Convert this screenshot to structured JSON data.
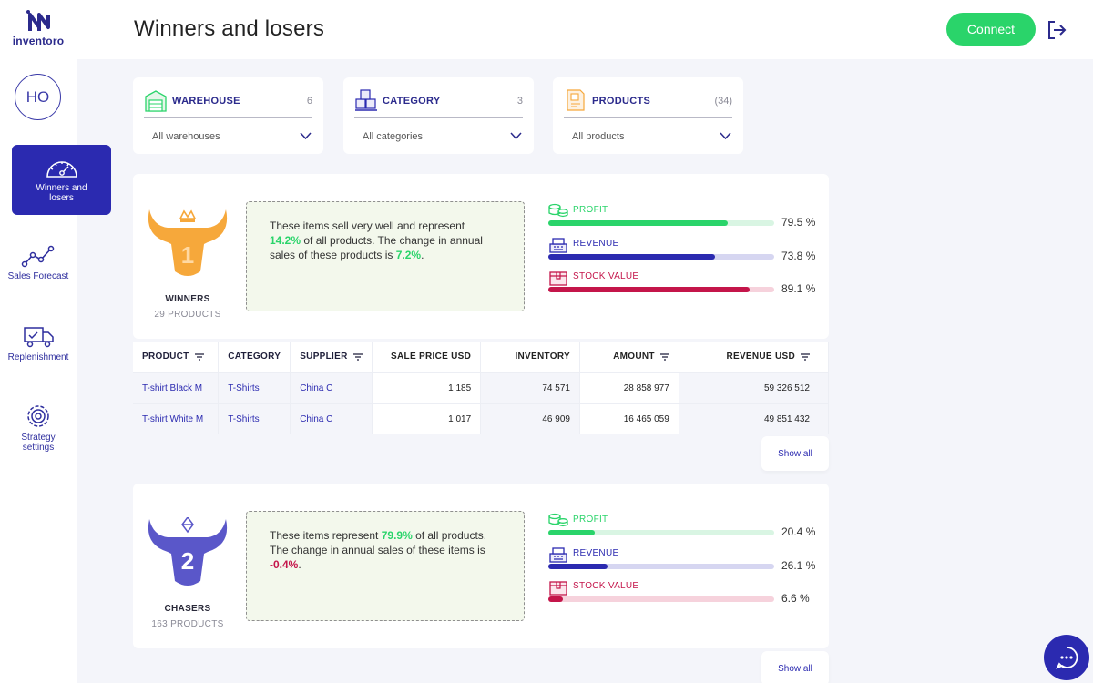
{
  "app": {
    "logo_text": "inventoro"
  },
  "user": {
    "initials": "HO"
  },
  "nav": {
    "active_label_line1": "Winners and",
    "active_label_line2": "losers",
    "forecast": "Sales Forecast",
    "replenishment": "Replenishment",
    "strategy_line1": "Strategy",
    "strategy_line2": "settings"
  },
  "header": {
    "title": "Winners and losers",
    "connect_label": "Connect"
  },
  "filters": {
    "warehouse": {
      "label": "WAREHOUSE",
      "count": "6",
      "value": "All warehouses"
    },
    "category": {
      "label": "CATEGORY",
      "count": "3",
      "value": "All categories"
    },
    "products": {
      "label": "PRODUCTS",
      "count": "(34)",
      "value": "All products"
    }
  },
  "winners": {
    "rank": "1",
    "title": "WINNERS",
    "subtitle": "29 PRODUCTS",
    "desc_part1": "These items sell very well and represent",
    "desc_pct": "14.2%",
    "desc_part2": " of all products. The change in annual sales of these products is ",
    "desc_change": "7.2%",
    "desc_end": ".",
    "metrics": {
      "profit": {
        "label": "PROFIT",
        "value": "79.5 %",
        "fraction": 0.795
      },
      "revenue": {
        "label": "REVENUE",
        "value": "73.8 %",
        "fraction": 0.738
      },
      "stock": {
        "label": "STOCK VALUE",
        "value": "89.1 %",
        "fraction": 0.891
      }
    }
  },
  "table": {
    "headers": {
      "product": "PRODUCT",
      "category": "CATEGORY",
      "supplier": "SUPPLIER",
      "sale_price": "SALE PRICE USD",
      "inventory": "INVENTORY",
      "amount": "AMOUNT",
      "revenue": "REVENUE USD"
    },
    "rows": [
      {
        "product": "T-shirt Black M",
        "category": "T-Shirts",
        "supplier": "China C",
        "sale_price": "1 185",
        "inventory": "74 571",
        "amount": "28 858 977",
        "revenue": "59 326 512"
      },
      {
        "product": "T-shirt White M",
        "category": "T-Shirts",
        "supplier": "China C",
        "sale_price": "1 017",
        "inventory": "46 909",
        "amount": "16 465 059",
        "revenue": "49 851 432"
      }
    ]
  },
  "show_all": "Show all",
  "chasers": {
    "rank": "2",
    "title": "CHASERS",
    "subtitle": "163 PRODUCTS",
    "desc_part1": "These items represent ",
    "desc_pct": "79.9%",
    "desc_part2": " of all products. The change in annual sales of these items is ",
    "desc_change": "-0.4%",
    "desc_end": ".",
    "metrics": {
      "profit": {
        "label": "PROFIT",
        "value": "20.4 %",
        "fraction": 0.204
      },
      "revenue": {
        "label": "REVENUE",
        "value": "26.1 %",
        "fraction": 0.261
      },
      "stock": {
        "label": "STOCK VALUE",
        "value": "6.6 %",
        "fraction": 0.066
      }
    }
  },
  "colors": {
    "profit": "#2ad46a",
    "profit_track": "#d9f5e3",
    "revenue": "#2b2ab0",
    "revenue_track": "#d6d6f1",
    "stock": "#c4154a",
    "stock_track": "#f6d2dc",
    "winner_badge": "#f6a83b",
    "chaser_badge": "#5a57c9"
  }
}
